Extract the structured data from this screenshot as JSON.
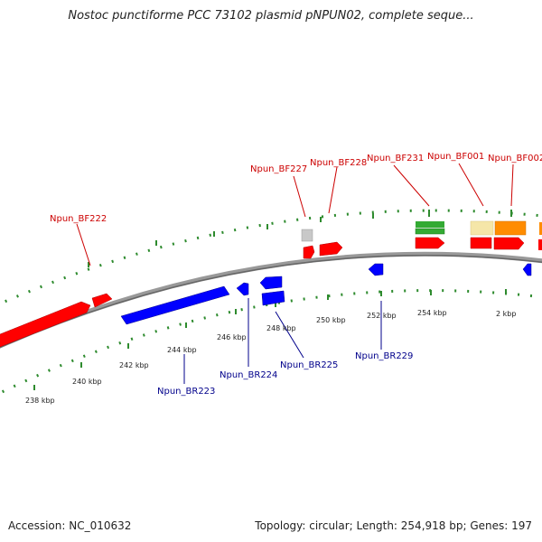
{
  "title": "Nostoc punctiforme PCC 73102 plasmid pNPUN02, complete seque...",
  "accession_text": "Accession: NC_010632",
  "summary_text": "Topology: circular; Length: 254,918 bp; Genes: 197",
  "colors": {
    "forward_gene": "#ff0000",
    "reverse_gene": "#0000ff",
    "forward_label": "#cc0000",
    "reverse_label": "#00008b",
    "backbone": "#888888",
    "tick": "#2e8b2e"
  },
  "kbp_labels": [
    "238 kbp",
    "240 kbp",
    "242 kbp",
    "244 kbp",
    "246 kbp",
    "248 kbp",
    "250 kbp",
    "252 kbp",
    "254 kbp",
    "2 kbp"
  ],
  "forward_labels": [
    "Npun_BF222",
    "Npun_BF227",
    "Npun_BF228",
    "Npun_BF231",
    "Npun_BF001",
    "Npun_BF002"
  ],
  "reverse_labels": [
    "Npun_BR223",
    "Npun_BR224",
    "Npun_BR225",
    "Npun_BR229"
  ]
}
